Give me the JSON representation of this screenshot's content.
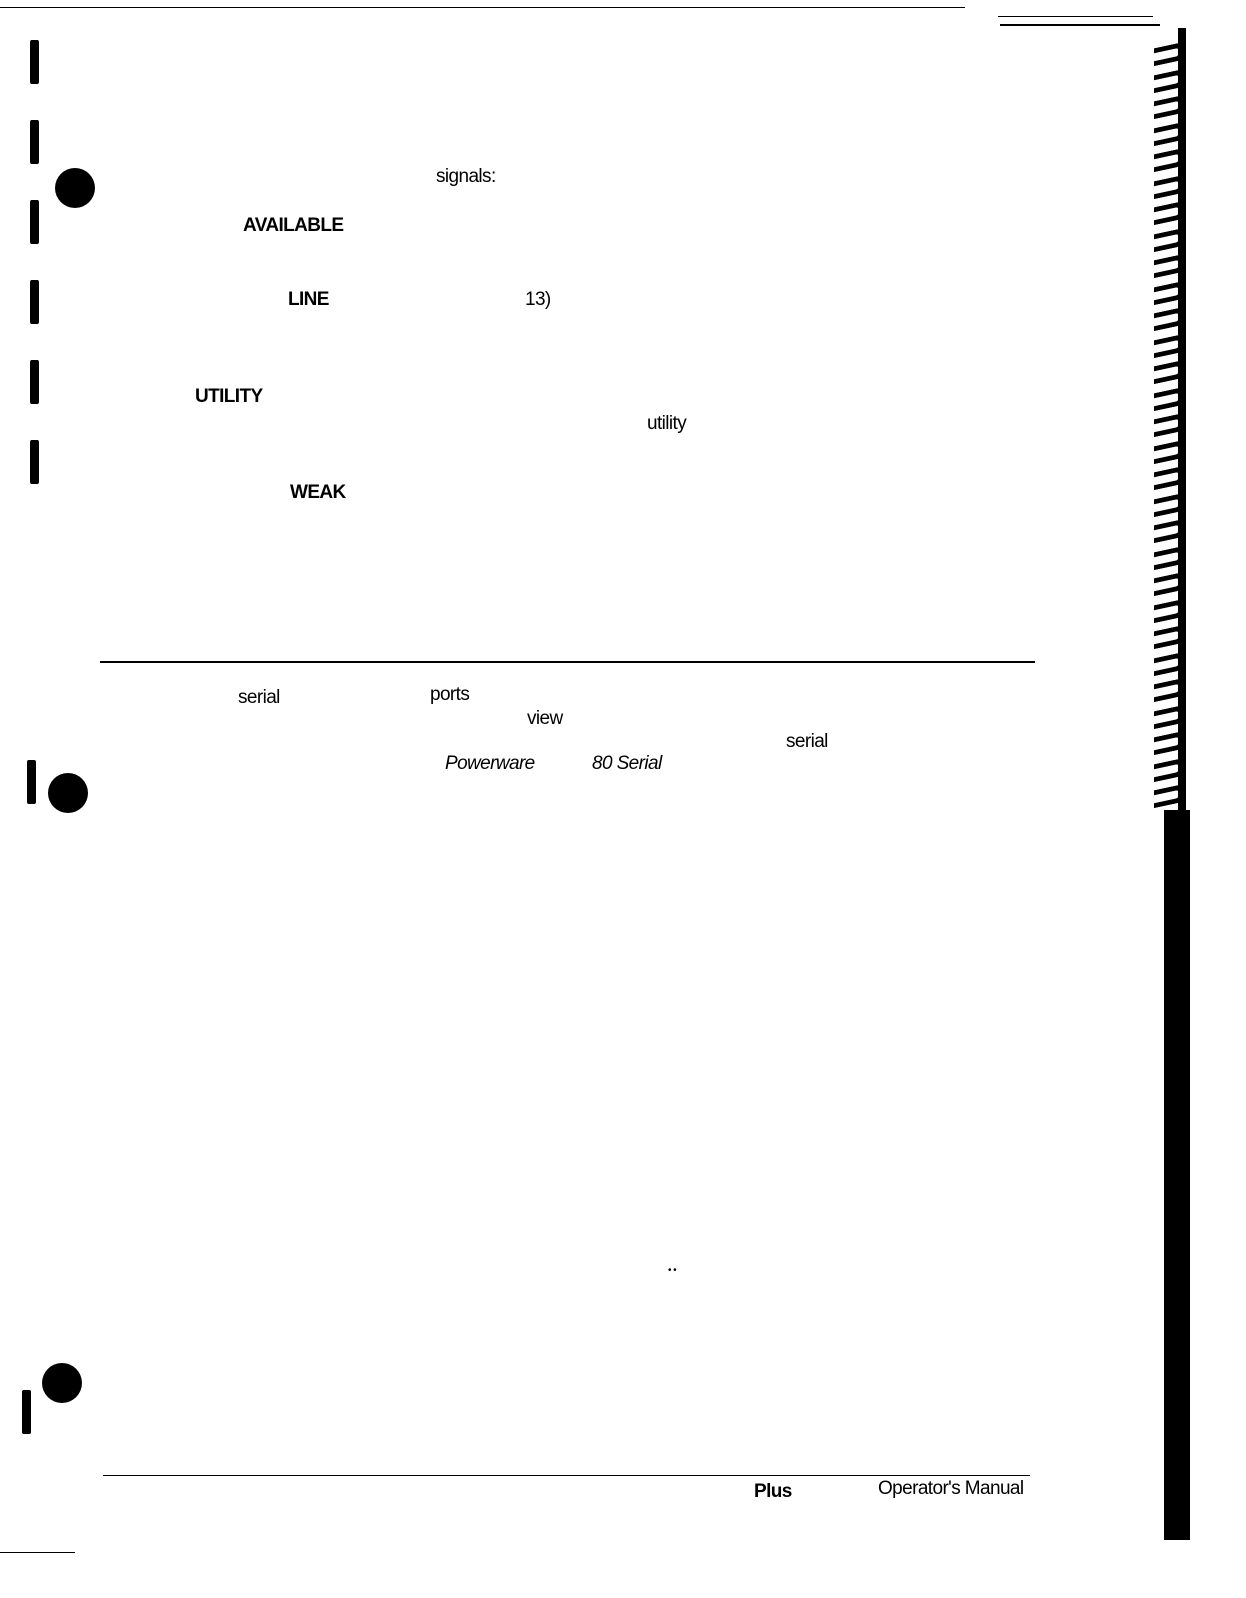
{
  "body_words": {
    "signals": "signals:",
    "available": "AVAILABLE",
    "line": "LINE",
    "ref13": "13)",
    "utility_caps": "UTILITY",
    "utility": "utility",
    "weak": "WEAK"
  },
  "serial_section": {
    "serial1": "serial",
    "ports": "ports",
    "view": "view",
    "serial2": "serial",
    "powerware": "Powerware",
    "serial_title": "80 Serial"
  },
  "footer": {
    "plus": "Plus",
    "manual": "Operator's Manual"
  }
}
